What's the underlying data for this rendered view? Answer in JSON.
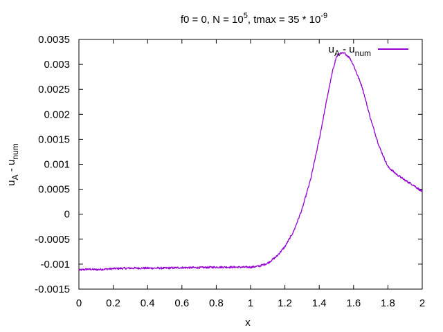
{
  "chart_data": {
    "type": "line",
    "title": {
      "prefix": "f0 = 0, N = 10",
      "n_exp": "5",
      "mid": ", tmax = 35 * 10",
      "t_exp": "-9"
    },
    "xlabel": "x",
    "ylabel": {
      "base1": "u",
      "sub1": "A",
      "mid": " - u",
      "sub2": "num"
    },
    "xlim": [
      0,
      2
    ],
    "ylim": [
      -0.0015,
      0.0035
    ],
    "x_ticks": [
      "0",
      "0.2",
      "0.4",
      "0.6",
      "0.8",
      "1",
      "1.2",
      "1.4",
      "1.6",
      "1.8",
      "2"
    ],
    "y_ticks": [
      "-0.0015",
      "-0.001",
      "-0.0005",
      "0",
      "0.0005",
      "0.001",
      "0.0015",
      "0.002",
      "0.0025",
      "0.003",
      "0.0035"
    ],
    "grid": false,
    "legend_position": "top-right",
    "series": [
      {
        "legend": {
          "base1": "u",
          "sub1": "A",
          "mid": " - u",
          "sub2": "num"
        },
        "color": "#9400d3",
        "x": [
          0,
          0.05,
          0.1,
          0.2,
          0.3,
          0.4,
          0.5,
          0.6,
          0.7,
          0.8,
          0.9,
          1.0,
          1.05,
          1.1,
          1.15,
          1.2,
          1.25,
          1.3,
          1.35,
          1.4,
          1.45,
          1.48,
          1.5,
          1.52,
          1.55,
          1.58,
          1.6,
          1.65,
          1.7,
          1.75,
          1.8,
          1.85,
          1.9,
          1.95,
          2.0
        ],
        "y": [
          -0.00112,
          -0.0011,
          -0.00111,
          -0.00109,
          -0.00108,
          -0.00108,
          -0.00108,
          -0.00107,
          -0.00107,
          -0.00106,
          -0.00106,
          -0.00106,
          -0.00104,
          -0.00098,
          -0.00085,
          -0.00065,
          -0.00035,
          0.0001,
          0.0007,
          0.0015,
          0.0024,
          0.0029,
          0.00315,
          0.00322,
          0.00322,
          0.00312,
          0.00298,
          0.00255,
          0.0019,
          0.00135,
          0.00095,
          0.0008,
          0.00068,
          0.00058,
          0.00045
        ]
      }
    ]
  }
}
